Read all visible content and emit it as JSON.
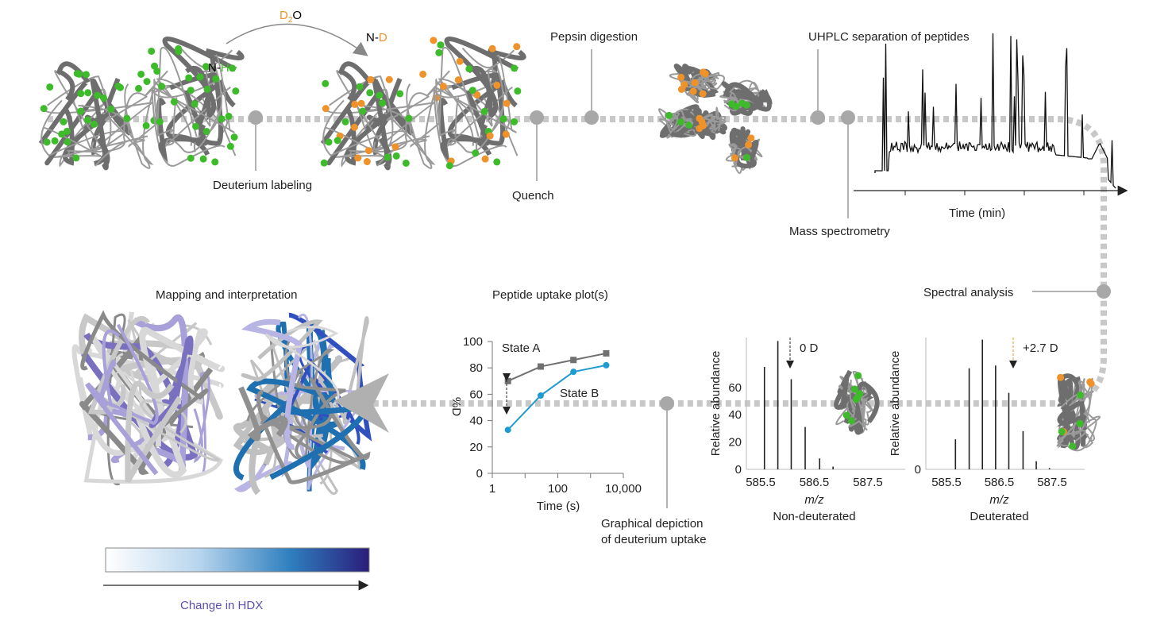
{
  "colors": {
    "green": "#3dbb2a",
    "orange": "#f0922a",
    "gray": "#8a8a8a",
    "dash": "#c8c8c8",
    "blue": "#1f9bd1",
    "hdx_label": "#5a4fb0",
    "bar_start": "#ffffff",
    "bar_mid": "#2f7fbf",
    "bar_end": "#2b1d7a"
  },
  "top": {
    "reagent": {
      "d": "D",
      "sub": "2",
      "o": "O"
    },
    "nh": {
      "n": "N-",
      "h": "H"
    },
    "nd": {
      "n": "N-",
      "d": "D"
    },
    "deuterium_labeling": "Deuterium labeling",
    "quench": "Quench",
    "pepsin": "Pepsin digestion",
    "uhplc": "UHPLC separation of peptides",
    "time_axis": "Time (min)",
    "mass_spec": "Mass spectrometry"
  },
  "bottom": {
    "mapping": "Mapping and interpretation",
    "change_hdx": "Change in HDX",
    "uptake_title": "Peptide uptake plot(s)",
    "graphical_1": "Graphical depiction",
    "graphical_2": "of deuterium uptake",
    "spectral": "Spectral analysis"
  },
  "chart_data": [
    {
      "type": "line",
      "title": "Peptide uptake plot(s)",
      "xlabel": "Time (s)",
      "ylabel": "%D",
      "xscale": "log",
      "xlim": [
        1,
        10000
      ],
      "ylim": [
        0,
        100
      ],
      "xticks": [
        "1",
        "100",
        "10,000"
      ],
      "yticks": [
        "0",
        "20",
        "40",
        "60",
        "80",
        "100"
      ],
      "series": [
        {
          "name": "State A",
          "color": "#707070",
          "x": [
            3,
            30,
            300,
            3000
          ],
          "y": [
            70,
            81,
            86,
            91
          ]
        },
        {
          "name": "State B",
          "color": "#1f9bd1",
          "x": [
            3,
            30,
            300,
            3000
          ],
          "y": [
            33,
            59,
            77,
            82
          ]
        }
      ]
    },
    {
      "type": "bar",
      "subtitle": "Non-deuterated",
      "xlabel": "m/z",
      "ylabel": "Relative abundance",
      "annotation": "0 D",
      "xticks": [
        "585.5",
        "586.5",
        "587.5"
      ],
      "yticks": [
        "0",
        "20",
        "40",
        "60"
      ],
      "x": [
        585.57,
        585.82,
        586.07,
        586.33,
        586.6,
        586.85
      ],
      "values": [
        75,
        94,
        66,
        31,
        8,
        2
      ]
    },
    {
      "type": "bar",
      "subtitle": "Deuterated",
      "xlabel": "m/z",
      "ylabel": "Relative abundance",
      "annotation": "+2.7 D",
      "xticks": [
        "585.5",
        "586.5",
        "587.5"
      ],
      "yticks": [
        "0"
      ],
      "x": [
        585.67,
        585.93,
        586.18,
        586.43,
        586.68,
        586.95,
        587.2,
        587.45
      ],
      "values": [
        22,
        74,
        95,
        76,
        56,
        28,
        6,
        1
      ]
    }
  ]
}
